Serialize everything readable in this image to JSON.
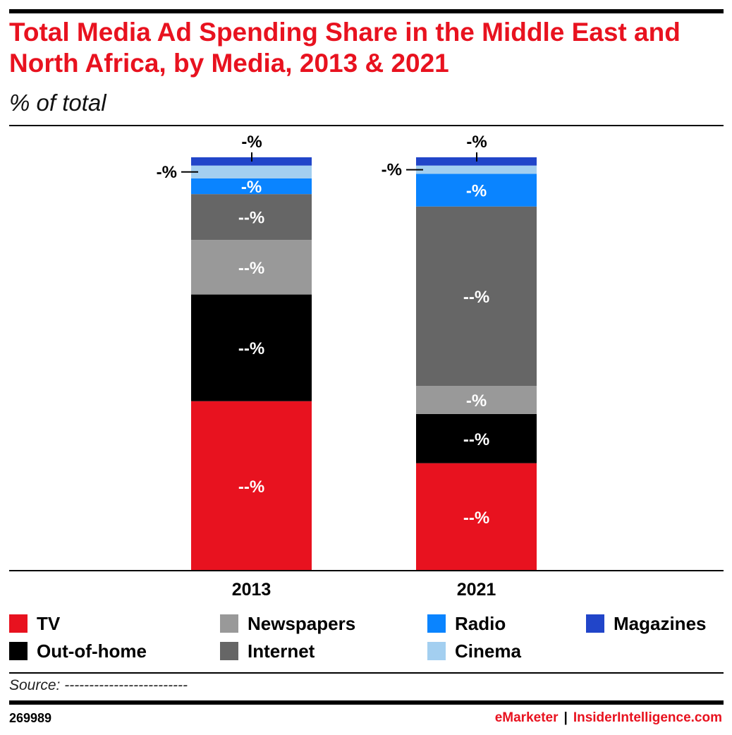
{
  "header": {
    "title": "Total Media Ad Spending Share in the Middle East and North Africa, by Media, 2013 & 2021",
    "subtitle": "% of total"
  },
  "chart_data": {
    "type": "bar",
    "stacked": true,
    "categories": [
      "2013",
      "2021"
    ],
    "ylim": [
      0,
      100
    ],
    "grid": false,
    "legend_position": "bottom",
    "series": [
      {
        "name": "TV",
        "color": "#e8121f",
        "label_color": "#ffffff",
        "values": [
          41.0,
          26.0
        ],
        "labels": [
          "--%",
          "--%"
        ]
      },
      {
        "name": "Out-of-home",
        "color": "#000000",
        "label_color": "#ffffff",
        "values": [
          25.8,
          11.9
        ],
        "labels": [
          "--%",
          "--%"
        ]
      },
      {
        "name": "Newspapers",
        "color": "#999999",
        "label_color": "#ffffff",
        "values": [
          13.2,
          6.8
        ],
        "labels": [
          "--%",
          "-%"
        ]
      },
      {
        "name": "Internet",
        "color": "#666666",
        "label_color": "#ffffff",
        "values": [
          11.1,
          43.4
        ],
        "labels": [
          "--%",
          "--%"
        ]
      },
      {
        "name": "Radio",
        "color": "#0a84ff",
        "label_color": "#ffffff",
        "values": [
          3.8,
          7.9
        ],
        "labels": [
          "-%",
          "-%"
        ]
      },
      {
        "name": "Cinema",
        "color": "#a3cff0",
        "label_color": "#000000",
        "values": [
          3.1,
          2.0
        ],
        "labels": [
          "-%",
          "-%"
        ]
      },
      {
        "name": "Magazines",
        "color": "#2145c9",
        "label_color": "#000000",
        "values": [
          2.0,
          2.0
        ],
        "labels": [
          "-%",
          "-%"
        ]
      }
    ],
    "legend_order": [
      "TV",
      "Newspapers",
      "Radio",
      "Magazines",
      "Out-of-home",
      "Internet",
      "Cinema"
    ]
  },
  "footer": {
    "source": "Source: -------------------------",
    "chart_id": "269989",
    "brand_a": "eMarketer",
    "separator": "|",
    "brand_b": "InsiderIntelligence.com"
  }
}
